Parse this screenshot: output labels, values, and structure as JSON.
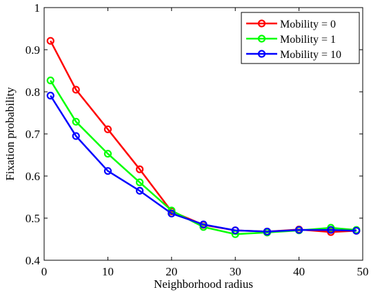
{
  "chart_data": {
    "type": "line",
    "title": "",
    "xlabel": "Neighborhood radius",
    "ylabel": "Fixation probability",
    "xlim": [
      0,
      50
    ],
    "ylim": [
      0.4,
      1
    ],
    "xticks": [
      0,
      10,
      20,
      30,
      40,
      50
    ],
    "yticks": [
      0.4,
      0.5,
      0.6,
      0.7,
      0.8,
      0.9,
      1
    ],
    "xtick_labels": [
      "0",
      "10",
      "20",
      "30",
      "40",
      "50"
    ],
    "ytick_labels": [
      "0.4",
      "0.5",
      "0.6",
      "0.7",
      "0.8",
      "0.9",
      "1"
    ],
    "grid": false,
    "legend_position": "top-right",
    "marker": "circle",
    "x": [
      1,
      5,
      10,
      15,
      20,
      25,
      30,
      35,
      40,
      45,
      49
    ],
    "series": [
      {
        "name": "Mobility = 0",
        "color": "#ff0000",
        "values": [
          0.921,
          0.805,
          0.711,
          0.616,
          0.516,
          0.484,
          0.471,
          0.468,
          0.473,
          0.467,
          0.47
        ]
      },
      {
        "name": "Mobility = 1",
        "color": "#00ff00",
        "values": [
          0.827,
          0.729,
          0.653,
          0.585,
          0.518,
          0.479,
          0.462,
          0.466,
          0.471,
          0.477,
          0.472
        ]
      },
      {
        "name": "Mobility = 10",
        "color": "#0000ff",
        "values": [
          0.791,
          0.695,
          0.612,
          0.565,
          0.511,
          0.485,
          0.471,
          0.468,
          0.472,
          0.472,
          0.47
        ]
      }
    ]
  }
}
